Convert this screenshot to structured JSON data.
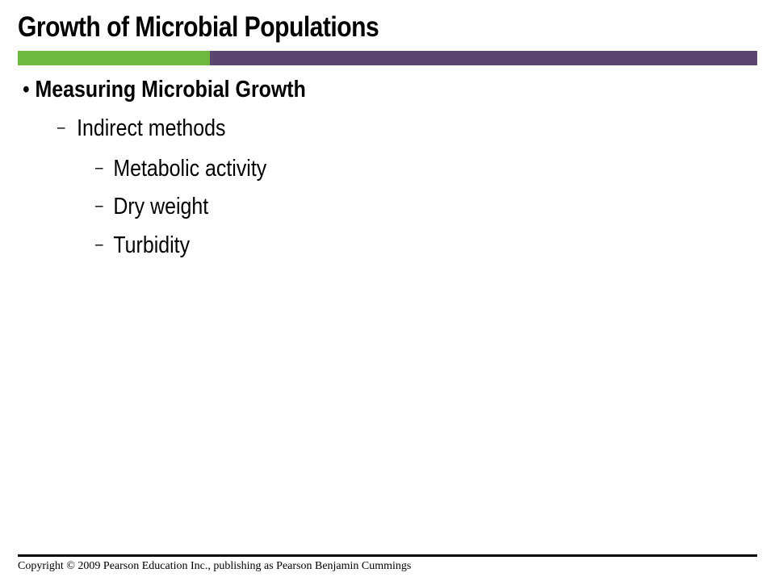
{
  "slide": {
    "title": "Growth of Microbial Populations",
    "colors": {
      "accent_green": "#6db93f",
      "accent_purple": "#5a4570"
    }
  },
  "content": {
    "level1": {
      "bullet": "•",
      "text": "Measuring Microbial Growth"
    },
    "level2": {
      "dash": "–",
      "text": "Indirect methods"
    },
    "level3": [
      {
        "dash": "–",
        "text": "Metabolic activity"
      },
      {
        "dash": "–",
        "text": "Dry weight"
      },
      {
        "dash": "–",
        "text": "Turbidity"
      }
    ]
  },
  "footer": {
    "copyright": "Copyright © 2009 Pearson Education Inc., publishing as Pearson Benjamin Cummings"
  }
}
